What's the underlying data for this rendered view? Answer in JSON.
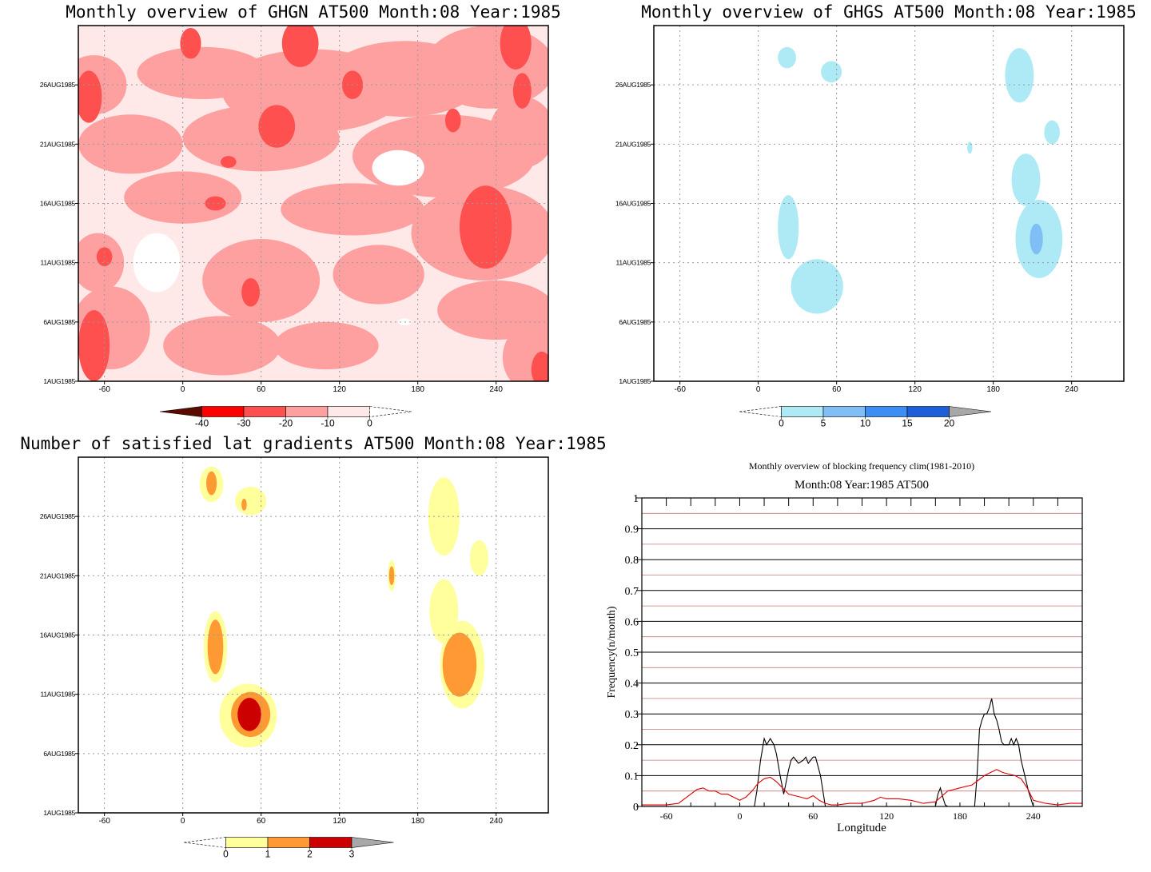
{
  "colors": {
    "ghgn": [
      "#5a0a00",
      "#ff0000",
      "#ff5050",
      "#ffa0a0",
      "#ffe8e8",
      "#ffffff"
    ],
    "ghgs": [
      "#ffffff",
      "#aeeaf5",
      "#7fbff6",
      "#3c8ef5",
      "#1c5fd8",
      "#a8a8a8"
    ],
    "lat": [
      "#ffffff",
      "#ffff9b",
      "#ff9933",
      "#cc0000",
      "#a8a8a8"
    ],
    "line_total": "#000000",
    "line_clim": "#dd0000",
    "grid": "#999999"
  },
  "chart_data": [
    {
      "type": "heatmap",
      "title": "Monthly overview of GHGN AT500 Month:08 Year:1985",
      "x_ticks": [
        "-60",
        "0",
        "60",
        "120",
        "180",
        "240"
      ],
      "x_tick_values": [
        -60,
        0,
        60,
        120,
        180,
        240
      ],
      "xlim": [
        -80,
        280
      ],
      "y_ticks": [
        "1AUG1985",
        "6AUG1985",
        "11AUG1985",
        "16AUG1985",
        "21AUG1985",
        "26AUG1985"
      ],
      "y_tick_values": [
        1,
        6,
        11,
        16,
        21,
        26
      ],
      "ylim": [
        1,
        31
      ],
      "colorbar_labels": [
        "-40",
        "-30",
        "-20",
        "-10",
        "0"
      ],
      "background_class": 4,
      "blobs": [
        {
          "c": 3,
          "lon": -68,
          "day": 26,
          "rx": 25,
          "ry": 2.5
        },
        {
          "c": 3,
          "lon": 15,
          "day": 27,
          "rx": 50,
          "ry": 2.2
        },
        {
          "c": 3,
          "lon": 100,
          "day": 25.5,
          "rx": 70,
          "ry": 3.5
        },
        {
          "c": 3,
          "lon": 170,
          "day": 26.5,
          "rx": 60,
          "ry": 3.2
        },
        {
          "c": 3,
          "lon": 235,
          "day": 27.5,
          "rx": 50,
          "ry": 3.5
        },
        {
          "c": 3,
          "lon": -40,
          "day": 21,
          "rx": 40,
          "ry": 2.5
        },
        {
          "c": 3,
          "lon": 60,
          "day": 21.5,
          "rx": 60,
          "ry": 2.8
        },
        {
          "c": 3,
          "lon": 200,
          "day": 20,
          "rx": 70,
          "ry": 3.5
        },
        {
          "c": 3,
          "lon": 260,
          "day": 22,
          "rx": 25,
          "ry": 3
        },
        {
          "c": 3,
          "lon": 0,
          "day": 16.5,
          "rx": 45,
          "ry": 2.2
        },
        {
          "c": 3,
          "lon": 130,
          "day": 15.5,
          "rx": 55,
          "ry": 2.2
        },
        {
          "c": 3,
          "lon": 230,
          "day": 13.5,
          "rx": 55,
          "ry": 4
        },
        {
          "c": 3,
          "lon": -65,
          "day": 11,
          "rx": 20,
          "ry": 2.5
        },
        {
          "c": 3,
          "lon": 60,
          "day": 9.5,
          "rx": 45,
          "ry": 3.5
        },
        {
          "c": 3,
          "lon": 150,
          "day": 10,
          "rx": 35,
          "ry": 2.5
        },
        {
          "c": 3,
          "lon": -55,
          "day": 5.5,
          "rx": 30,
          "ry": 3.5
        },
        {
          "c": 3,
          "lon": 30,
          "day": 4,
          "rx": 45,
          "ry": 2.5
        },
        {
          "c": 3,
          "lon": 240,
          "day": 7,
          "rx": 45,
          "ry": 2.5
        },
        {
          "c": 3,
          "lon": 270,
          "day": 3,
          "rx": 25,
          "ry": 3
        },
        {
          "c": 3,
          "lon": 110,
          "day": 4,
          "rx": 40,
          "ry": 2
        },
        {
          "c": 2,
          "lon": 6,
          "day": 29.5,
          "rx": 8,
          "ry": 1.3
        },
        {
          "c": 2,
          "lon": 90,
          "day": 29.5,
          "rx": 14,
          "ry": 2
        },
        {
          "c": 2,
          "lon": -72,
          "day": 25,
          "rx": 10,
          "ry": 2.2
        },
        {
          "c": 2,
          "lon": 72,
          "day": 22.5,
          "rx": 14,
          "ry": 1.8
        },
        {
          "c": 2,
          "lon": 130,
          "day": 26,
          "rx": 8,
          "ry": 1.2
        },
        {
          "c": 2,
          "lon": 255,
          "day": 29.5,
          "rx": 12,
          "ry": 2.2
        },
        {
          "c": 2,
          "lon": 260,
          "day": 25.5,
          "rx": 7,
          "ry": 1.5
        },
        {
          "c": 2,
          "lon": 232,
          "day": 14,
          "rx": 20,
          "ry": 3.5
        },
        {
          "c": 2,
          "lon": 207,
          "day": 23,
          "rx": 6,
          "ry": 1
        },
        {
          "c": 2,
          "lon": 25,
          "day": 16,
          "rx": 8,
          "ry": 0.6
        },
        {
          "c": 2,
          "lon": 52,
          "day": 8.5,
          "rx": 7,
          "ry": 1.2
        },
        {
          "c": 2,
          "lon": -68,
          "day": 4,
          "rx": 12,
          "ry": 3
        },
        {
          "c": 2,
          "lon": -60,
          "day": 11.5,
          "rx": 6,
          "ry": 0.8
        },
        {
          "c": 2,
          "lon": 275,
          "day": 2,
          "rx": 8,
          "ry": 1.5
        },
        {
          "c": 2,
          "lon": 35,
          "day": 19.5,
          "rx": 6,
          "ry": 0.5
        },
        {
          "c": 5,
          "lon": -20,
          "day": 11,
          "rx": 18,
          "ry": 2.5
        },
        {
          "c": 5,
          "lon": 165,
          "day": 19,
          "rx": 20,
          "ry": 1.5
        },
        {
          "c": 5,
          "lon": 170,
          "day": 6,
          "rx": 5,
          "ry": 0.3
        }
      ]
    },
    {
      "type": "heatmap",
      "title": "Monthly overview of GHGS AT500 Month:08 Year:1985",
      "x_ticks": [
        "-60",
        "0",
        "60",
        "120",
        "180",
        "240"
      ],
      "x_tick_values": [
        -60,
        0,
        60,
        120,
        180,
        240
      ],
      "xlim": [
        -80,
        280
      ],
      "y_ticks": [
        "1AUG1985",
        "6AUG1985",
        "11AUG1985",
        "16AUG1985",
        "21AUG1985",
        "26AUG1985"
      ],
      "y_tick_values": [
        1,
        6,
        11,
        16,
        21,
        26
      ],
      "ylim": [
        1,
        31
      ],
      "colorbar_labels": [
        "0",
        "5",
        "10",
        "15",
        "20"
      ],
      "background_class": 0,
      "blobs": [
        {
          "c": 1,
          "lon": 22,
          "day": 28.3,
          "rx": 7,
          "ry": 0.9
        },
        {
          "c": 1,
          "lon": 56,
          "day": 27.1,
          "rx": 8,
          "ry": 0.9
        },
        {
          "c": 1,
          "lon": 200,
          "day": 26.8,
          "rx": 11,
          "ry": 2.3
        },
        {
          "c": 1,
          "lon": 225,
          "day": 22,
          "rx": 6,
          "ry": 1
        },
        {
          "c": 1,
          "lon": 162,
          "day": 20.7,
          "rx": 2,
          "ry": 0.5
        },
        {
          "c": 1,
          "lon": 23,
          "day": 14,
          "rx": 8,
          "ry": 2.7
        },
        {
          "c": 1,
          "lon": 45,
          "day": 9,
          "rx": 20,
          "ry": 2.3
        },
        {
          "c": 1,
          "lon": 205,
          "day": 18,
          "rx": 11,
          "ry": 2.2
        },
        {
          "c": 1,
          "lon": 215,
          "day": 13,
          "rx": 18,
          "ry": 3.3
        },
        {
          "c": 2,
          "lon": 213,
          "day": 13,
          "rx": 5,
          "ry": 1.3
        }
      ]
    },
    {
      "type": "heatmap",
      "title": "Number of satisfied lat gradients AT500 Month:08 Year:1985",
      "x_ticks": [
        "-60",
        "0",
        "60",
        "120",
        "180",
        "240"
      ],
      "x_tick_values": [
        -60,
        0,
        60,
        120,
        180,
        240
      ],
      "xlim": [
        -80,
        280
      ],
      "y_ticks": [
        "1AUG1985",
        "6AUG1985",
        "11AUG1985",
        "16AUG1985",
        "21AUG1985",
        "26AUG1985"
      ],
      "y_tick_values": [
        1,
        6,
        11,
        16,
        21,
        26
      ],
      "ylim": [
        1,
        31
      ],
      "colorbar_labels": [
        "0",
        "1",
        "2",
        "3"
      ],
      "background_class": 0,
      "blobs": [
        {
          "c": 1,
          "lon": 22,
          "day": 28.7,
          "rx": 9,
          "ry": 1.5
        },
        {
          "c": 1,
          "lon": 52,
          "day": 27.3,
          "rx": 12,
          "ry": 1.2
        },
        {
          "c": 1,
          "lon": 200,
          "day": 26,
          "rx": 12,
          "ry": 3.3
        },
        {
          "c": 1,
          "lon": 227,
          "day": 22.5,
          "rx": 7,
          "ry": 1.5
        },
        {
          "c": 1,
          "lon": 160,
          "day": 21,
          "rx": 3,
          "ry": 1.3
        },
        {
          "c": 1,
          "lon": 200,
          "day": 18,
          "rx": 11,
          "ry": 2.7
        },
        {
          "c": 1,
          "lon": 214,
          "day": 13.5,
          "rx": 17,
          "ry": 3.7
        },
        {
          "c": 1,
          "lon": 25,
          "day": 15,
          "rx": 9,
          "ry": 3
        },
        {
          "c": 1,
          "lon": 50,
          "day": 9.2,
          "rx": 22,
          "ry": 2.7
        },
        {
          "c": 2,
          "lon": 22,
          "day": 28.8,
          "rx": 4,
          "ry": 1
        },
        {
          "c": 2,
          "lon": 47,
          "day": 27,
          "rx": 2,
          "ry": 0.5
        },
        {
          "c": 2,
          "lon": 160,
          "day": 21,
          "rx": 2,
          "ry": 0.8
        },
        {
          "c": 2,
          "lon": 25,
          "day": 15,
          "rx": 6,
          "ry": 2.3
        },
        {
          "c": 2,
          "lon": 212,
          "day": 13.5,
          "rx": 13,
          "ry": 2.7
        },
        {
          "c": 2,
          "lon": 52,
          "day": 9.3,
          "rx": 15,
          "ry": 1.9
        },
        {
          "c": 3,
          "lon": 51,
          "day": 9.3,
          "rx": 9,
          "ry": 1.4
        }
      ]
    },
    {
      "type": "line",
      "title": "Monthly overview of blocking frequency clim(1981-2010)",
      "subtitle": "Month:08 Year:1985  AT500",
      "xlabel": "Longitude",
      "ylabel": "Frequency(n/month)",
      "xlim": [
        -80,
        280
      ],
      "ylim": [
        0,
        1
      ],
      "x_ticks": [
        "-60",
        "0",
        "60",
        "120",
        "180",
        "240"
      ],
      "x_tick_values": [
        -60,
        0,
        60,
        120,
        180,
        240
      ],
      "y_ticks": [
        "0",
        "0.1",
        "0.2",
        "0.3",
        "0.4",
        "0.5",
        "0.6",
        "0.7",
        "0.8",
        "0.9",
        "1"
      ],
      "y_tick_values": [
        0,
        0.1,
        0.2,
        0.3,
        0.4,
        0.5,
        0.6,
        0.7,
        0.8,
        0.9,
        1
      ],
      "grid": true,
      "series": [
        {
          "color": "#000000",
          "x": [
            -80,
            12,
            14,
            17,
            20,
            22,
            25,
            28,
            30,
            33,
            36,
            38,
            40,
            42,
            44,
            48,
            52,
            54,
            56,
            60,
            62,
            64,
            66,
            70,
            160,
            162,
            164,
            166,
            168,
            170,
            192,
            194,
            196,
            198,
            200,
            202,
            204,
            206,
            208,
            210,
            212,
            214,
            216,
            218,
            220,
            222,
            224,
            226,
            228,
            230,
            233,
            236,
            240,
            280
          ],
          "y": [
            0,
            0,
            0.05,
            0.15,
            0.22,
            0.2,
            0.22,
            0.2,
            0.17,
            0.1,
            0.04,
            0.08,
            0.12,
            0.15,
            0.16,
            0.14,
            0.15,
            0.16,
            0.14,
            0.16,
            0.16,
            0.13,
            0.1,
            0,
            0,
            0.04,
            0.06,
            0.03,
            0.005,
            0,
            0,
            0.1,
            0.25,
            0.28,
            0.3,
            0.3,
            0.32,
            0.35,
            0.3,
            0.28,
            0.25,
            0.21,
            0.2,
            0.2,
            0.2,
            0.22,
            0.2,
            0.22,
            0.2,
            0.15,
            0.1,
            0.05,
            0,
            0
          ]
        },
        {
          "color": "#dd0000",
          "x": [
            -80,
            -60,
            -50,
            -40,
            -35,
            -30,
            -25,
            -20,
            -15,
            -10,
            -5,
            0,
            5,
            10,
            15,
            20,
            25,
            30,
            35,
            40,
            45,
            50,
            55,
            60,
            65,
            70,
            75,
            80,
            90,
            100,
            110,
            115,
            120,
            130,
            140,
            150,
            160,
            170,
            180,
            190,
            200,
            205,
            210,
            215,
            220,
            225,
            230,
            235,
            240,
            250,
            260,
            270,
            280
          ],
          "y": [
            0.005,
            0.005,
            0.01,
            0.04,
            0.055,
            0.06,
            0.05,
            0.05,
            0.04,
            0.04,
            0.03,
            0.02,
            0.03,
            0.05,
            0.075,
            0.09,
            0.095,
            0.08,
            0.06,
            0.04,
            0.035,
            0.03,
            0.025,
            0.035,
            0.02,
            0.01,
            0.005,
            0.005,
            0.01,
            0.01,
            0.02,
            0.03,
            0.025,
            0.025,
            0.02,
            0.01,
            0.015,
            0.05,
            0.06,
            0.07,
            0.1,
            0.11,
            0.12,
            0.11,
            0.105,
            0.1,
            0.09,
            0.06,
            0.02,
            0.01,
            0.005,
            0.01,
            0.01
          ]
        }
      ]
    }
  ]
}
